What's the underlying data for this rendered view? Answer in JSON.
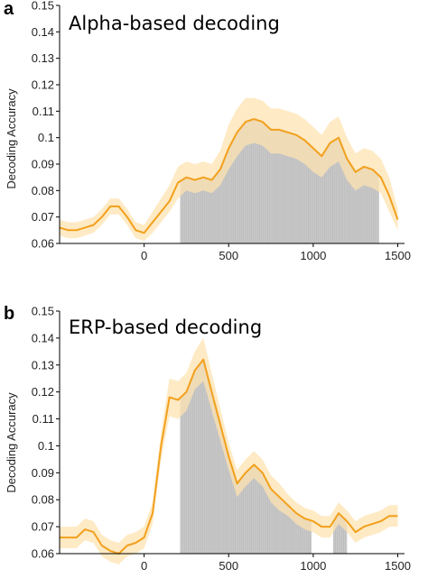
{
  "colors": {
    "mean_line": "#f2a01d",
    "ci_band": "#fde3b0",
    "significance": "#c8c8c8",
    "axis": "#000000"
  },
  "chart_data": [
    {
      "panel": "a",
      "type": "line",
      "title": "Alpha-based decoding",
      "xlabel": "",
      "ylabel": "Decoding Accuracy",
      "xlim": [
        -500,
        1540
      ],
      "ylim": [
        0.06,
        0.15
      ],
      "xticks": [
        0,
        500,
        1000,
        1500
      ],
      "xtick_labels": [
        "0",
        "500",
        "1000",
        "1500"
      ],
      "yticks": [
        0.06,
        0.07,
        0.08,
        0.09,
        0.1,
        0.11,
        0.12,
        0.13,
        0.14,
        0.15
      ],
      "ytick_labels": [
        "0.06",
        "0.07",
        "0.08",
        "0.09",
        "0.1",
        "0.11",
        "0.12",
        "0.13",
        "0.14",
        "0.15"
      ],
      "grid": false,
      "legend": "none",
      "series": [
        {
          "x": [
            -500,
            -450,
            -400,
            -350,
            -300,
            -250,
            -200,
            -150,
            -100,
            -50,
            0,
            50,
            100,
            150,
            200,
            250,
            300,
            350,
            400,
            450,
            500,
            550,
            600,
            650,
            700,
            750,
            800,
            850,
            900,
            950,
            1000,
            1050,
            1100,
            1150,
            1200,
            1250,
            1300,
            1350,
            1400,
            1450,
            1500
          ],
          "y": [
            0.066,
            0.065,
            0.065,
            0.066,
            0.067,
            0.07,
            0.074,
            0.074,
            0.07,
            0.065,
            0.064,
            0.068,
            0.072,
            0.076,
            0.083,
            0.085,
            0.084,
            0.085,
            0.084,
            0.088,
            0.096,
            0.102,
            0.106,
            0.107,
            0.106,
            0.103,
            0.103,
            0.102,
            0.101,
            0.099,
            0.096,
            0.093,
            0.098,
            0.1,
            0.092,
            0.087,
            0.089,
            0.088,
            0.085,
            0.078,
            0.069
          ],
          "lower": [
            0.063,
            0.062,
            0.062,
            0.063,
            0.064,
            0.067,
            0.071,
            0.071,
            0.067,
            0.062,
            0.061,
            0.064,
            0.068,
            0.072,
            0.077,
            0.08,
            0.079,
            0.08,
            0.079,
            0.082,
            0.088,
            0.093,
            0.097,
            0.098,
            0.097,
            0.094,
            0.094,
            0.093,
            0.092,
            0.09,
            0.087,
            0.085,
            0.089,
            0.091,
            0.084,
            0.08,
            0.082,
            0.081,
            0.079,
            0.072,
            0.065
          ],
          "upper": [
            0.069,
            0.068,
            0.068,
            0.069,
            0.07,
            0.073,
            0.077,
            0.077,
            0.073,
            0.068,
            0.067,
            0.072,
            0.077,
            0.082,
            0.089,
            0.091,
            0.09,
            0.091,
            0.09,
            0.095,
            0.105,
            0.111,
            0.115,
            0.115,
            0.114,
            0.111,
            0.111,
            0.11,
            0.109,
            0.107,
            0.104,
            0.101,
            0.106,
            0.108,
            0.1,
            0.094,
            0.096,
            0.095,
            0.092,
            0.085,
            0.073
          ]
        }
      ],
      "significant_x_ranges": [
        [
          215,
          1390
        ]
      ]
    },
    {
      "panel": "b",
      "type": "line",
      "title": "ERP-based decoding",
      "xlabel": "",
      "ylabel": "Decoding Accuracy",
      "xlim": [
        -500,
        1540
      ],
      "ylim": [
        0.06,
        0.15
      ],
      "xticks": [
        0,
        500,
        1000,
        1500
      ],
      "xtick_labels": [
        "0",
        "500",
        "1000",
        "1500"
      ],
      "yticks": [
        0.06,
        0.07,
        0.08,
        0.09,
        0.1,
        0.11,
        0.12,
        0.13,
        0.14,
        0.15
      ],
      "ytick_labels": [
        "0.06",
        "0.07",
        "0.08",
        "0.09",
        "0.1",
        "0.11",
        "0.12",
        "0.13",
        "0.14",
        "0.15"
      ],
      "grid": false,
      "legend": "none",
      "series": [
        {
          "x": [
            -500,
            -450,
            -400,
            -350,
            -300,
            -250,
            -200,
            -150,
            -100,
            -50,
            0,
            50,
            100,
            150,
            200,
            250,
            300,
            350,
            400,
            450,
            500,
            550,
            600,
            650,
            700,
            750,
            800,
            850,
            900,
            950,
            1000,
            1050,
            1100,
            1150,
            1200,
            1250,
            1300,
            1350,
            1400,
            1450,
            1500
          ],
          "y": [
            0.066,
            0.066,
            0.066,
            0.069,
            0.068,
            0.063,
            0.061,
            0.06,
            0.063,
            0.064,
            0.066,
            0.075,
            0.1,
            0.118,
            0.117,
            0.12,
            0.128,
            0.132,
            0.12,
            0.108,
            0.096,
            0.086,
            0.09,
            0.093,
            0.09,
            0.084,
            0.081,
            0.078,
            0.075,
            0.073,
            0.072,
            0.07,
            0.07,
            0.075,
            0.072,
            0.068,
            0.07,
            0.071,
            0.072,
            0.074,
            0.074
          ],
          "lower": [
            0.062,
            0.062,
            0.062,
            0.065,
            0.064,
            0.059,
            0.057,
            0.056,
            0.059,
            0.06,
            0.062,
            0.071,
            0.095,
            0.111,
            0.11,
            0.113,
            0.121,
            0.124,
            0.113,
            0.102,
            0.091,
            0.081,
            0.085,
            0.088,
            0.085,
            0.079,
            0.076,
            0.074,
            0.071,
            0.069,
            0.068,
            0.066,
            0.066,
            0.071,
            0.068,
            0.064,
            0.066,
            0.067,
            0.068,
            0.07,
            0.07
          ],
          "upper": [
            0.07,
            0.07,
            0.07,
            0.073,
            0.072,
            0.067,
            0.065,
            0.064,
            0.067,
            0.068,
            0.07,
            0.079,
            0.105,
            0.125,
            0.124,
            0.127,
            0.135,
            0.14,
            0.127,
            0.114,
            0.101,
            0.091,
            0.095,
            0.098,
            0.095,
            0.089,
            0.086,
            0.082,
            0.079,
            0.077,
            0.076,
            0.074,
            0.074,
            0.079,
            0.076,
            0.072,
            0.074,
            0.075,
            0.076,
            0.078,
            0.078
          ]
        }
      ],
      "significant_x_ranges": [
        [
          215,
          990
        ],
        [
          1120,
          1200
        ]
      ]
    }
  ]
}
